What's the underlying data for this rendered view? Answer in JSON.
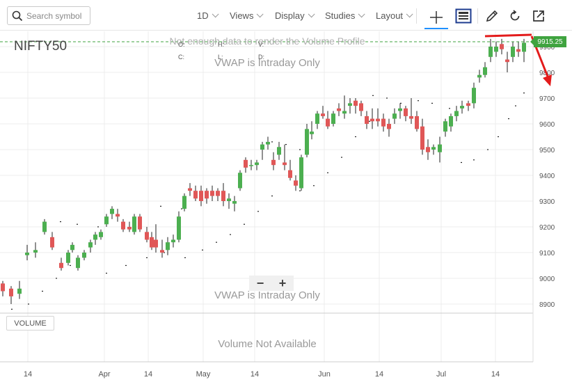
{
  "toolbar": {
    "search_placeholder": "Search symbol",
    "interval": "1D",
    "views": "Views",
    "display": "Display",
    "studies": "Studies",
    "layout": "Layout"
  },
  "chart": {
    "symbol": "NIFTY50",
    "ohlc_labels": {
      "o": "O:",
      "h": "H:",
      "v": "V:",
      "c": "C:",
      "l": "L:",
      "d": "D:"
    },
    "overlay_text_top": "Not enough data to render the Volume Profile",
    "vwap_text_top": "VWAP is Intraday Only",
    "vwap_text_bottom": "VWAP is Intraday Only",
    "volume_text": "Volume Not Available",
    "volume_button": "VOLUME",
    "zoom_out": "−",
    "zoom_in": "+",
    "last_price": "9915.25",
    "colors": {
      "up": "#4caf50",
      "down": "#e05757",
      "price_tag": "#3fa33f",
      "annotation": "#e31b1b"
    }
  },
  "chart_data": {
    "type": "candlestick",
    "title": "NIFTY50",
    "y_ticks": [
      "8900",
      "9000",
      "9100",
      "9200",
      "9300",
      "9400",
      "9500",
      "9600",
      "9700",
      "9800",
      "9900"
    ],
    "x_ticks": [
      "14",
      "Apr",
      "14",
      "May",
      "14",
      "Jun",
      "14",
      "Jul",
      "14"
    ],
    "ylim": [
      8860,
      9960
    ],
    "last_price": 9915.25
  }
}
